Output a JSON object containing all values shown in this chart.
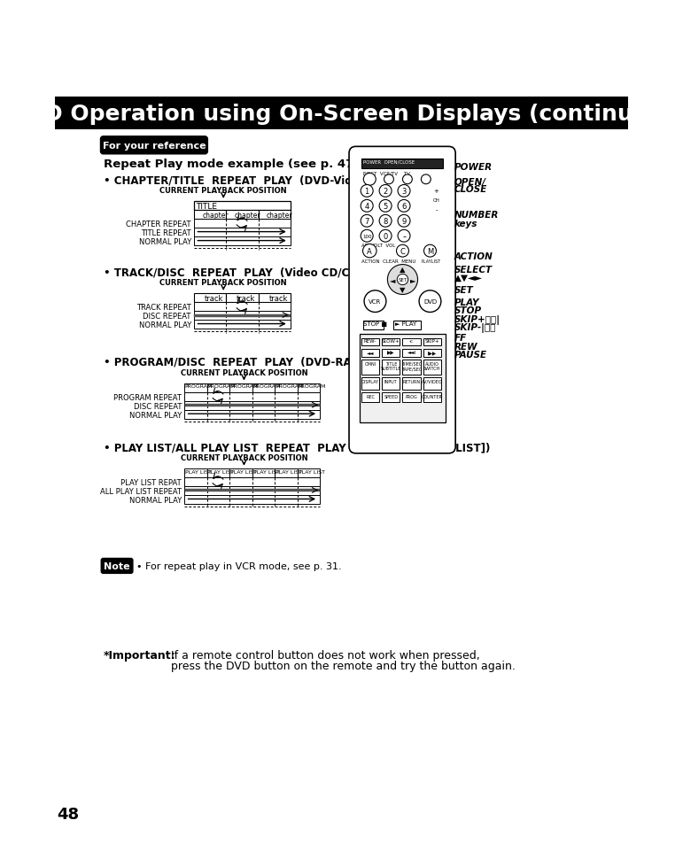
{
  "title": "DVD Operation using On-Screen Displays (continued)",
  "title_bg": "#000000",
  "title_color": "#ffffff",
  "bg_color": "#ffffff",
  "text_color": "#000000",
  "ref_label": "For your reference",
  "repeat_title": "Repeat Play mode example (see p. 47)",
  "section1_title": "• CHAPTER/TITLE  REPEAT  PLAY  (DVD-Video)",
  "section2_title": "• TRACK/DISC  REPEAT  PLAY  (Video CD/CD)",
  "section3_title": "• PROGRAM/DISC  REPEAT  PLAY  (DVD-RAM [PROGRAM])",
  "section4_title": "• PLAY LIST/ALL PLAY LIST  REPEAT  PLAY  (DVD-RAM [PLAY LIST])",
  "note_text": "• For repeat play in VCR mode, see p. 31.",
  "important_label": "*Important:",
  "important_text1": "If a remote control button does not work when pressed,",
  "important_text2": "press the DVD button on the remote and try the button again.",
  "page_num": "48"
}
